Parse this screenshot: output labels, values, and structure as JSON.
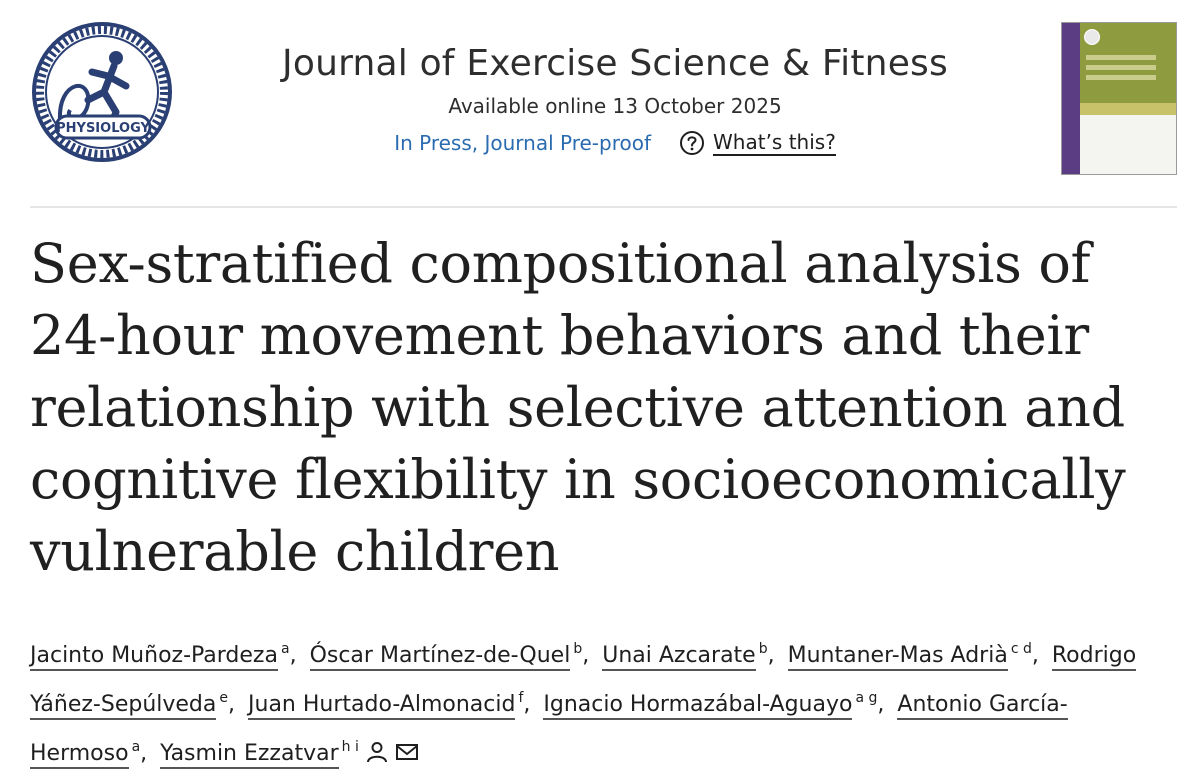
{
  "header": {
    "society_logo_text": "PHYSIOLOGY",
    "journal_title": "Journal of Exercise Science & Fitness",
    "online_date": "Available online 13 October 2025",
    "press_status": "In Press, Journal Pre-proof",
    "whats_this": "What’s this?",
    "help_icon": "question-circle-icon"
  },
  "article": {
    "title": "Sex-stratified compositional analysis of 24-hour movement behaviors and their relationship with selective attention and cognitive flexibility in socioeconomically vulnerable children"
  },
  "authors": [
    {
      "name": "Jacinto Muñoz-Pardeza",
      "aff": "a"
    },
    {
      "name": "Óscar Martínez-de-Quel",
      "aff": "b"
    },
    {
      "name": "Unai Azcarate",
      "aff": "b"
    },
    {
      "name": "Muntaner-Mas Adrià",
      "aff": "c d"
    },
    {
      "name": "Rodrigo Yáñez-Sepúlveda",
      "aff": "e"
    },
    {
      "name": "Juan Hurtado-Almonacid",
      "aff": "f"
    },
    {
      "name": "Ignacio Hormazábal-Aguayo",
      "aff": "a g"
    },
    {
      "name": "Antonio García-Hermoso",
      "aff": "a"
    },
    {
      "name": "Yasmin Ezzatvar",
      "aff": "h i"
    }
  ],
  "icons": {
    "corresponding_author": "person-icon",
    "email": "envelope-icon"
  },
  "colors": {
    "link_blue": "#2b6cb0",
    "logo_navy": "#2a3f73",
    "cover_olive": "#8c9a3c",
    "cover_purple": "#5b3d83"
  }
}
